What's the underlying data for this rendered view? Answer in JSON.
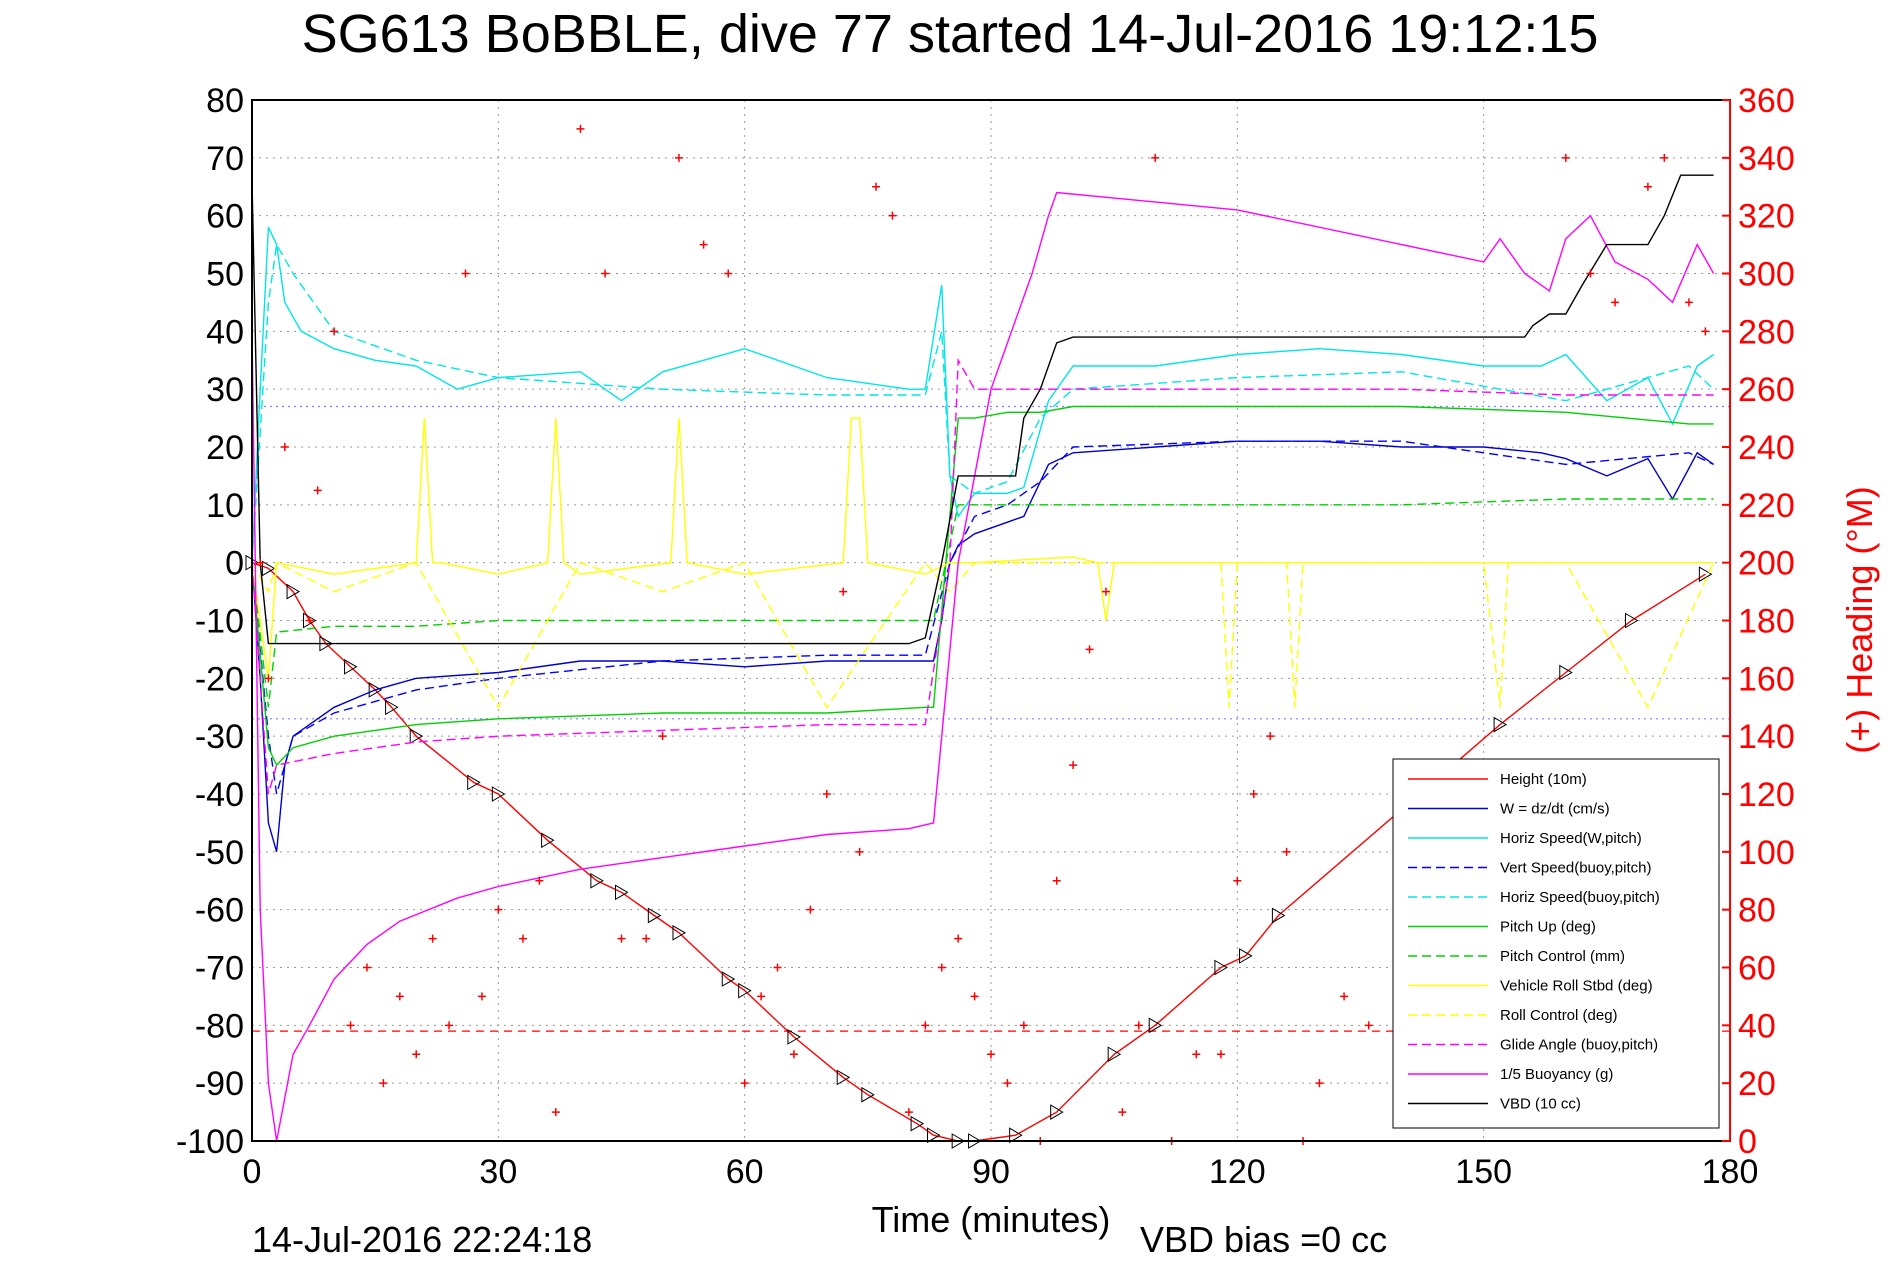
{
  "chart_data": {
    "type": "line",
    "title": "SG613 BoBBLE, dive 77 started 14-Jul-2016 19:12:15",
    "xlabel": "Time (minutes)",
    "ylabel_right": "(+) Heading (°M)",
    "footer_left": "14-Jul-2016 22:24:18",
    "footer_right": "VBD bias =0 cc",
    "xlim": [
      0,
      180
    ],
    "ylim": [
      -100,
      80
    ],
    "ylim_right": [
      0,
      360
    ],
    "xticks": [
      "0",
      "30",
      "60",
      "90",
      "120",
      "150",
      "180"
    ],
    "yticks": [
      "80",
      "70",
      "60",
      "50",
      "40",
      "30",
      "20",
      "10",
      "0",
      "-10",
      "-20",
      "-30",
      "-40",
      "-50",
      "-60",
      "-70",
      "-80",
      "-90",
      "-100"
    ],
    "yticks_right": [
      "360",
      "340",
      "320",
      "300",
      "280",
      "260",
      "240",
      "220",
      "200",
      "180",
      "160",
      "140",
      "120",
      "100",
      "80",
      "60",
      "40",
      "20",
      "0"
    ],
    "grid": true,
    "legend_position": "lower-right",
    "reference_lines": [
      {
        "y": 27,
        "color": "#8080ff",
        "style": "dotted",
        "x_range": [
          0,
          180
        ]
      },
      {
        "y": -27,
        "color": "#8080ff",
        "style": "dotted",
        "x_range": [
          0,
          180
        ]
      },
      {
        "y": -81,
        "color": "#ff0000",
        "style": "dashed",
        "x_range": [
          0,
          180
        ]
      }
    ],
    "series": [
      {
        "name": "Height (10m)",
        "color": "#ff0000",
        "style": "solid",
        "x": [
          0,
          2,
          5,
          7,
          9,
          12,
          15,
          17,
          20,
          27,
          30,
          36,
          42,
          45,
          49,
          52,
          58,
          60,
          66,
          72,
          75,
          81,
          83,
          86,
          88,
          93,
          98,
          105,
          110,
          118,
          121,
          125,
          152,
          160,
          168,
          177
        ],
        "y": [
          0,
          -1,
          -5,
          -10,
          -14,
          -18,
          -22,
          -25,
          -30,
          -38,
          -40,
          -48,
          -55,
          -57,
          -61,
          -64,
          -72,
          -74,
          -82,
          -89,
          -92,
          -97,
          -99,
          -100,
          -100,
          -99,
          -95,
          -85,
          -80,
          -70,
          -68,
          -61,
          -28,
          -19,
          -10,
          -2
        ]
      },
      {
        "name": "W = dz/dt (cm/s)",
        "color": "#0000cc",
        "style": "solid",
        "x": [
          0,
          1,
          2,
          3,
          4,
          5,
          7,
          10,
          15,
          20,
          30,
          40,
          50,
          60,
          70,
          80,
          83,
          84,
          85,
          86,
          88,
          92,
          94,
          97,
          100,
          110,
          120,
          130,
          140,
          150,
          157,
          160,
          165,
          170,
          173,
          176,
          178
        ],
        "y": [
          0,
          -20,
          -45,
          -50,
          -35,
          -30,
          -28,
          -25,
          -22,
          -20,
          -19,
          -17,
          -17,
          -18,
          -17,
          -17,
          -17,
          -10,
          0,
          3,
          5,
          7,
          8,
          17,
          19,
          20,
          21,
          21,
          20,
          20,
          19,
          18,
          15,
          18,
          11,
          19,
          17
        ]
      },
      {
        "name": "Horiz Speed(W,pitch)",
        "color": "#00e5e5",
        "style": "solid",
        "x": [
          0,
          1,
          2,
          3,
          4,
          6,
          10,
          15,
          20,
          25,
          30,
          40,
          45,
          50,
          60,
          70,
          80,
          82,
          84,
          85,
          86,
          88,
          92,
          94,
          97,
          100,
          110,
          120,
          130,
          140,
          150,
          157,
          160,
          165,
          170,
          173,
          176,
          178
        ],
        "y": [
          0,
          30,
          58,
          55,
          45,
          40,
          37,
          35,
          34,
          30,
          32,
          33,
          28,
          33,
          37,
          32,
          30,
          30,
          48,
          15,
          8,
          12,
          12,
          13,
          28,
          34,
          34,
          36,
          37,
          36,
          34,
          34,
          36,
          28,
          32,
          24,
          34,
          36
        ]
      },
      {
        "name": "Vert Speed(buoy,pitch)",
        "color": "#0000ff",
        "style": "dashed",
        "x": [
          0,
          2,
          3,
          5,
          10,
          20,
          30,
          50,
          70,
          82,
          85,
          88,
          92,
          96,
          100,
          120,
          140,
          160,
          175,
          178
        ],
        "y": [
          0,
          -30,
          -40,
          -30,
          -26,
          -22,
          -20,
          -17,
          -16,
          -16,
          0,
          8,
          10,
          14,
          20,
          21,
          21,
          17,
          19,
          17
        ]
      },
      {
        "name": "Horiz Speed(buoy,pitch)",
        "color": "#00e5e5",
        "style": "dashed",
        "x": [
          0,
          2,
          3,
          5,
          10,
          20,
          30,
          50,
          70,
          82,
          84,
          85,
          88,
          92,
          96,
          100,
          120,
          140,
          160,
          175,
          178
        ],
        "y": [
          0,
          45,
          55,
          50,
          40,
          35,
          32,
          30,
          29,
          29,
          40,
          15,
          12,
          14,
          25,
          30,
          32,
          33,
          28,
          34,
          30
        ]
      },
      {
        "name": "Pitch Up (deg)",
        "color": "#00d000",
        "style": "solid",
        "x": [
          0,
          2,
          3,
          5,
          10,
          20,
          30,
          50,
          70,
          82,
          83,
          86,
          88,
          92,
          96,
          100,
          120,
          140,
          160,
          175,
          178
        ],
        "y": [
          0,
          -32,
          -35,
          -32,
          -30,
          -28,
          -27,
          -26,
          -26,
          -25,
          -25,
          25,
          25,
          26,
          26,
          27,
          27,
          27,
          26,
          24,
          24
        ]
      },
      {
        "name": "Pitch Control (mm)",
        "color": "#00d000",
        "style": "dashed",
        "x": [
          0,
          2,
          3,
          10,
          20,
          30,
          50,
          70,
          82,
          83,
          86,
          88,
          100,
          120,
          140,
          160,
          175,
          178
        ],
        "y": [
          0,
          -25,
          -12,
          -11,
          -11,
          -10,
          -10,
          -10,
          -10,
          -10,
          10,
          10,
          10,
          10,
          10,
          11,
          11,
          11
        ]
      },
      {
        "name": "Vehicle Roll Stbd (deg)",
        "color": "#ffff00",
        "style": "solid",
        "x": [
          0,
          2,
          3,
          10,
          20,
          21,
          22,
          23,
          30,
          36,
          37,
          38,
          40,
          51,
          52,
          53,
          60,
          72,
          73,
          74,
          75,
          82,
          85,
          88,
          100,
          103,
          104,
          105,
          110,
          120,
          130,
          150,
          160,
          170,
          178
        ],
        "y": [
          0,
          -20,
          0,
          -2,
          0,
          25,
          0,
          0,
          -2,
          0,
          25,
          0,
          -2,
          0,
          25,
          0,
          -2,
          0,
          25,
          25,
          0,
          -2,
          0,
          0,
          1,
          0,
          -10,
          0,
          0,
          0,
          0,
          0,
          0,
          0,
          0
        ]
      },
      {
        "name": "Roll Control (deg)",
        "color": "#ffff00",
        "style": "dashed",
        "x": [
          0,
          2,
          3,
          10,
          20,
          30,
          40,
          50,
          60,
          70,
          82,
          85,
          88,
          100,
          118,
          119,
          120,
          126,
          127,
          128,
          150,
          152,
          153,
          160,
          170,
          178
        ],
        "y": [
          0,
          -5,
          0,
          -5,
          0,
          -25,
          0,
          -5,
          0,
          -25,
          0,
          -5,
          0,
          0,
          0,
          -25,
          0,
          0,
          -25,
          0,
          0,
          -25,
          0,
          0,
          -25,
          0
        ]
      },
      {
        "name": "Glide Angle (buoy,pitch)",
        "color": "#ff00ff",
        "style": "dashed",
        "x": [
          0,
          2,
          3,
          10,
          20,
          30,
          50,
          70,
          82,
          85,
          86,
          88,
          100,
          120,
          140,
          160,
          175,
          178
        ],
        "y": [
          0,
          -40,
          -35,
          -33,
          -31,
          -30,
          -29,
          -28,
          -28,
          0,
          35,
          30,
          30,
          30,
          30,
          29,
          29,
          29
        ]
      },
      {
        "name": "1/5 Buoyancy (g)",
        "color": "#ff00ff",
        "style": "solid",
        "x": [
          0,
          1,
          2,
          3,
          5,
          7,
          10,
          14,
          18,
          25,
          30,
          40,
          50,
          60,
          70,
          80,
          83,
          86,
          90,
          95,
          97,
          98,
          120,
          150,
          152,
          155,
          158,
          160,
          163,
          166,
          170,
          173,
          176,
          178
        ],
        "y": [
          40,
          -60,
          -90,
          -100,
          -85,
          -80,
          -72,
          -66,
          -62,
          -58,
          -56,
          -53,
          -51,
          -49,
          -47,
          -46,
          -45,
          0,
          30,
          50,
          60,
          64,
          61,
          52,
          56,
          50,
          47,
          56,
          60,
          52,
          49,
          45,
          55,
          50
        ]
      },
      {
        "name": "VBD (10 cc)",
        "color": "#000000",
        "style": "solid",
        "x": [
          0,
          1,
          2,
          3,
          80,
          82,
          84,
          86,
          88,
          93,
          94,
          96,
          98,
          100,
          155,
          156,
          158,
          160,
          162,
          165,
          170,
          172,
          174,
          178
        ],
        "y": [
          66,
          0,
          -14,
          -14,
          -14,
          -13,
          0,
          15,
          15,
          15,
          25,
          30,
          38,
          39,
          39,
          41,
          43,
          43,
          48,
          55,
          55,
          60,
          67,
          67
        ]
      },
      {
        "name": "Heading",
        "color": "#ff0000",
        "style": "plus-markers",
        "axis": "right",
        "x": [
          1,
          2,
          4,
          7,
          8,
          10,
          12,
          14,
          16,
          18,
          20,
          22,
          24,
          26,
          28,
          30,
          33,
          35,
          37,
          40,
          43,
          45,
          48,
          50,
          52,
          55,
          58,
          60,
          62,
          64,
          66,
          68,
          70,
          72,
          74,
          76,
          78,
          80,
          82,
          84,
          86,
          88,
          90,
          92,
          94,
          96,
          98,
          100,
          102,
          104,
          106,
          108,
          110,
          112,
          115,
          118,
          120,
          122,
          124,
          126,
          128,
          130,
          133,
          136,
          140,
          145,
          150,
          155,
          160,
          163,
          166,
          170,
          172,
          175,
          177
        ],
        "y": [
          200,
          160,
          240,
          180,
          225,
          280,
          40,
          60,
          20,
          50,
          30,
          70,
          40,
          300,
          50,
          80,
          70,
          90,
          10,
          350,
          300,
          70,
          70,
          140,
          340,
          310,
          300,
          20,
          50,
          60,
          30,
          80,
          120,
          190,
          100,
          330,
          320,
          10,
          40,
          60,
          70,
          50,
          30,
          20,
          40,
          0,
          90,
          130,
          170,
          190,
          10,
          40,
          340,
          0,
          30,
          30,
          90,
          120,
          140,
          100,
          0,
          20,
          50,
          40,
          60,
          50,
          60,
          20,
          340,
          300,
          290,
          330,
          340,
          290,
          280
        ]
      }
    ]
  }
}
